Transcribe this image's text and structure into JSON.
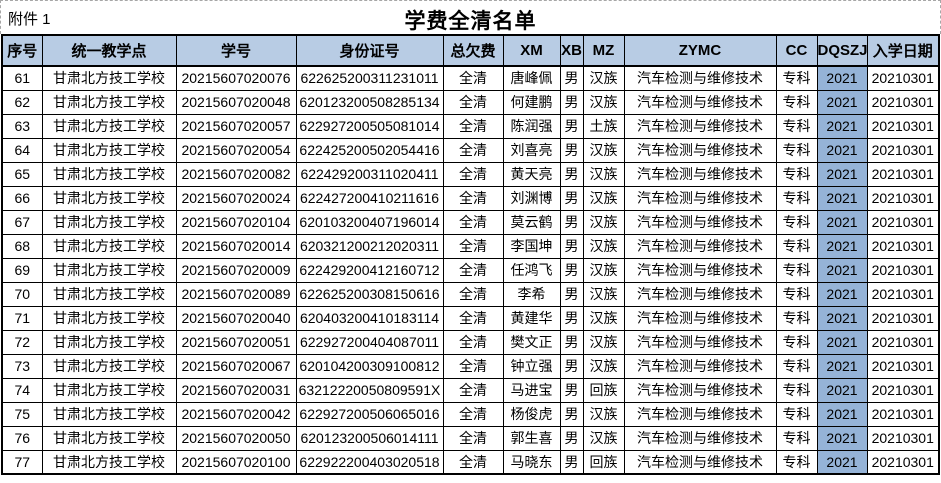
{
  "page": {
    "attachment_label": "附件 1",
    "title": "学费全清名单"
  },
  "colors": {
    "header_bg": "#b8cce4",
    "dqszj_column_bg": "#95b3d7",
    "grid_border": "#000000",
    "pagebreak_dash": "#a6a6a6"
  },
  "table": {
    "headers": [
      "序号",
      "统一教学点",
      "学号",
      "身份证号",
      "总欠费",
      "XM",
      "XB",
      "MZ",
      "ZYMC",
      "CC",
      "DQSZJ",
      "入学日期"
    ],
    "highlight_column_index": 10,
    "rows": [
      [
        "61",
        "甘肃北方技工学校",
        "20215607020076",
        "622625200311231011",
        "全清",
        "唐峰佩",
        "男",
        "汉族",
        "汽车检测与维修技术",
        "专科",
        "2021",
        "20210301"
      ],
      [
        "62",
        "甘肃北方技工学校",
        "20215607020048",
        "620123200508285134",
        "全清",
        "何建鹏",
        "男",
        "汉族",
        "汽车检测与维修技术",
        "专科",
        "2021",
        "20210301"
      ],
      [
        "63",
        "甘肃北方技工学校",
        "20215607020057",
        "622927200505081014",
        "全清",
        "陈润强",
        "男",
        "土族",
        "汽车检测与维修技术",
        "专科",
        "2021",
        "20210301"
      ],
      [
        "64",
        "甘肃北方技工学校",
        "20215607020054",
        "622425200502054416",
        "全清",
        "刘喜亮",
        "男",
        "汉族",
        "汽车检测与维修技术",
        "专科",
        "2021",
        "20210301"
      ],
      [
        "65",
        "甘肃北方技工学校",
        "20215607020082",
        "622429200311020411",
        "全清",
        "黄天亮",
        "男",
        "汉族",
        "汽车检测与维修技术",
        "专科",
        "2021",
        "20210301"
      ],
      [
        "66",
        "甘肃北方技工学校",
        "20215607020024",
        "622427200410211616",
        "全清",
        "刘渊博",
        "男",
        "汉族",
        "汽车检测与维修技术",
        "专科",
        "2021",
        "20210301"
      ],
      [
        "67",
        "甘肃北方技工学校",
        "20215607020104",
        "620103200407196014",
        "全清",
        "莫云鹤",
        "男",
        "汉族",
        "汽车检测与维修技术",
        "专科",
        "2021",
        "20210301"
      ],
      [
        "68",
        "甘肃北方技工学校",
        "20215607020014",
        "620321200212020311",
        "全清",
        "李国坤",
        "男",
        "汉族",
        "汽车检测与维修技术",
        "专科",
        "2021",
        "20210301"
      ],
      [
        "69",
        "甘肃北方技工学校",
        "20215607020009",
        "622429200412160712",
        "全清",
        "任鸿飞",
        "男",
        "汉族",
        "汽车检测与维修技术",
        "专科",
        "2021",
        "20210301"
      ],
      [
        "70",
        "甘肃北方技工学校",
        "20215607020089",
        "622625200308150616",
        "全清",
        "李希",
        "男",
        "汉族",
        "汽车检测与维修技术",
        "专科",
        "2021",
        "20210301"
      ],
      [
        "71",
        "甘肃北方技工学校",
        "20215607020040",
        "620403200410183114",
        "全清",
        "黄建华",
        "男",
        "汉族",
        "汽车检测与维修技术",
        "专科",
        "2021",
        "20210301"
      ],
      [
        "72",
        "甘肃北方技工学校",
        "20215607020051",
        "622927200404087011",
        "全清",
        "樊文正",
        "男",
        "汉族",
        "汽车检测与维修技术",
        "专科",
        "2021",
        "20210301"
      ],
      [
        "73",
        "甘肃北方技工学校",
        "20215607020067",
        "620104200309100812",
        "全清",
        "钟立强",
        "男",
        "汉族",
        "汽车检测与维修技术",
        "专科",
        "2021",
        "20210301"
      ],
      [
        "74",
        "甘肃北方技工学校",
        "20215607020031",
        "63212220050809591X",
        "全清",
        "马进宝",
        "男",
        "回族",
        "汽车检测与维修技术",
        "专科",
        "2021",
        "20210301"
      ],
      [
        "75",
        "甘肃北方技工学校",
        "20215607020042",
        "622927200506065016",
        "全清",
        "杨俊虎",
        "男",
        "汉族",
        "汽车检测与维修技术",
        "专科",
        "2021",
        "20210301"
      ],
      [
        "76",
        "甘肃北方技工学校",
        "20215607020050",
        "620123200506014111",
        "全清",
        "郭生喜",
        "男",
        "汉族",
        "汽车检测与维修技术",
        "专科",
        "2021",
        "20210301"
      ],
      [
        "77",
        "甘肃北方技工学校",
        "20215607020100",
        "622922200403020518",
        "全清",
        "马晓东",
        "男",
        "回族",
        "汽车检测与维修技术",
        "专科",
        "2021",
        "20210301"
      ]
    ]
  }
}
